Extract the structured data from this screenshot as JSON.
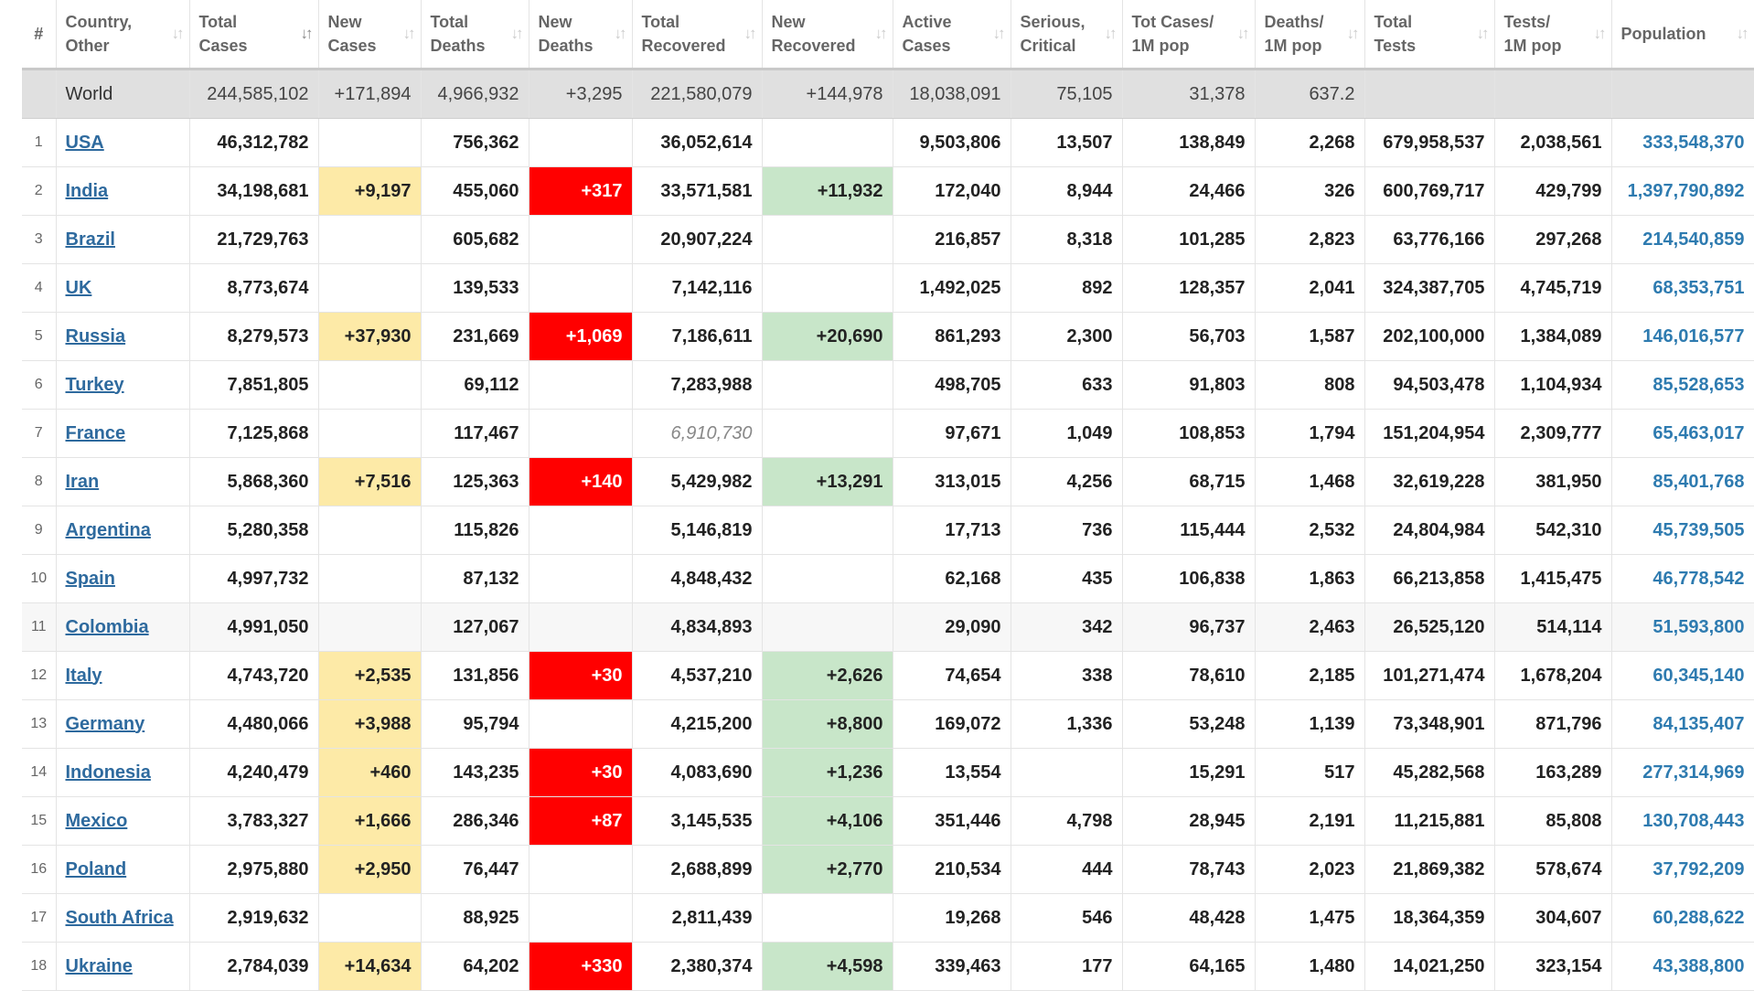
{
  "headers": [
    {
      "label": "#",
      "sort": false
    },
    {
      "label": "Country,\nOther",
      "sort": true
    },
    {
      "label": "Total\nCases",
      "sort": true,
      "active": true
    },
    {
      "label": "New\nCases",
      "sort": true
    },
    {
      "label": "Total\nDeaths",
      "sort": true
    },
    {
      "label": "New\nDeaths",
      "sort": true
    },
    {
      "label": "Total\nRecovered",
      "sort": true
    },
    {
      "label": "New\nRecovered",
      "sort": true
    },
    {
      "label": "Active\nCases",
      "sort": true
    },
    {
      "label": "Serious,\nCritical",
      "sort": true
    },
    {
      "label": "Tot Cases/\n1M pop",
      "sort": true
    },
    {
      "label": "Deaths/\n1M pop",
      "sort": true
    },
    {
      "label": "Total\nTests",
      "sort": true
    },
    {
      "label": "Tests/\n1M pop",
      "sort": true
    },
    {
      "label": "Population",
      "sort": true
    }
  ],
  "world": {
    "country": "World",
    "total_cases": "244,585,102",
    "new_cases": "+171,894",
    "total_deaths": "4,966,932",
    "new_deaths": "+3,295",
    "total_recovered": "221,580,079",
    "new_recovered": "+144,978",
    "active_cases": "18,038,091",
    "serious_critical": "75,105",
    "cases_per_1m": "31,378",
    "deaths_per_1m": "637.2",
    "total_tests": "",
    "tests_per_1m": "",
    "population": ""
  },
  "rows": [
    {
      "idx": "1",
      "country": "USA",
      "total_cases": "46,312,782",
      "new_cases": "",
      "total_deaths": "756,362",
      "new_deaths": "",
      "total_recovered": "36,052,614",
      "new_recovered": "",
      "active_cases": "9,503,806",
      "serious_critical": "13,507",
      "cases_per_1m": "138,849",
      "deaths_per_1m": "2,268",
      "total_tests": "679,958,537",
      "tests_per_1m": "2,038,561",
      "population": "333,548,370"
    },
    {
      "idx": "2",
      "country": "India",
      "total_cases": "34,198,681",
      "new_cases": "+9,197",
      "total_deaths": "455,060",
      "new_deaths": "+317",
      "total_recovered": "33,571,581",
      "new_recovered": "+11,932",
      "active_cases": "172,040",
      "serious_critical": "8,944",
      "cases_per_1m": "24,466",
      "deaths_per_1m": "326",
      "total_tests": "600,769,717",
      "tests_per_1m": "429,799",
      "population": "1,397,790,892"
    },
    {
      "idx": "3",
      "country": "Brazil",
      "total_cases": "21,729,763",
      "new_cases": "",
      "total_deaths": "605,682",
      "new_deaths": "",
      "total_recovered": "20,907,224",
      "new_recovered": "",
      "active_cases": "216,857",
      "serious_critical": "8,318",
      "cases_per_1m": "101,285",
      "deaths_per_1m": "2,823",
      "total_tests": "63,776,166",
      "tests_per_1m": "297,268",
      "population": "214,540,859"
    },
    {
      "idx": "4",
      "country": "UK",
      "total_cases": "8,773,674",
      "new_cases": "",
      "total_deaths": "139,533",
      "new_deaths": "",
      "total_recovered": "7,142,116",
      "new_recovered": "",
      "active_cases": "1,492,025",
      "serious_critical": "892",
      "cases_per_1m": "128,357",
      "deaths_per_1m": "2,041",
      "total_tests": "324,387,705",
      "tests_per_1m": "4,745,719",
      "population": "68,353,751"
    },
    {
      "idx": "5",
      "country": "Russia",
      "total_cases": "8,279,573",
      "new_cases": "+37,930",
      "total_deaths": "231,669",
      "new_deaths": "+1,069",
      "total_recovered": "7,186,611",
      "new_recovered": "+20,690",
      "active_cases": "861,293",
      "serious_critical": "2,300",
      "cases_per_1m": "56,703",
      "deaths_per_1m": "1,587",
      "total_tests": "202,100,000",
      "tests_per_1m": "1,384,089",
      "population": "146,016,577"
    },
    {
      "idx": "6",
      "country": "Turkey",
      "total_cases": "7,851,805",
      "new_cases": "",
      "total_deaths": "69,112",
      "new_deaths": "",
      "total_recovered": "7,283,988",
      "new_recovered": "",
      "active_cases": "498,705",
      "serious_critical": "633",
      "cases_per_1m": "91,803",
      "deaths_per_1m": "808",
      "total_tests": "94,503,478",
      "tests_per_1m": "1,104,934",
      "population": "85,528,653"
    },
    {
      "idx": "7",
      "country": "France",
      "total_cases": "7,125,868",
      "new_cases": "",
      "total_deaths": "117,467",
      "new_deaths": "",
      "total_recovered": "6,910,730",
      "recovered_italic": true,
      "new_recovered": "",
      "active_cases": "97,671",
      "serious_critical": "1,049",
      "cases_per_1m": "108,853",
      "deaths_per_1m": "1,794",
      "total_tests": "151,204,954",
      "tests_per_1m": "2,309,777",
      "population": "65,463,017"
    },
    {
      "idx": "8",
      "country": "Iran",
      "total_cases": "5,868,360",
      "new_cases": "+7,516",
      "total_deaths": "125,363",
      "new_deaths": "+140",
      "total_recovered": "5,429,982",
      "new_recovered": "+13,291",
      "active_cases": "313,015",
      "serious_critical": "4,256",
      "cases_per_1m": "68,715",
      "deaths_per_1m": "1,468",
      "total_tests": "32,619,228",
      "tests_per_1m": "381,950",
      "population": "85,401,768"
    },
    {
      "idx": "9",
      "country": "Argentina",
      "total_cases": "5,280,358",
      "new_cases": "",
      "total_deaths": "115,826",
      "new_deaths": "",
      "total_recovered": "5,146,819",
      "new_recovered": "",
      "active_cases": "17,713",
      "serious_critical": "736",
      "cases_per_1m": "115,444",
      "deaths_per_1m": "2,532",
      "total_tests": "24,804,984",
      "tests_per_1m": "542,310",
      "population": "45,739,505"
    },
    {
      "idx": "10",
      "country": "Spain",
      "total_cases": "4,997,732",
      "new_cases": "",
      "total_deaths": "87,132",
      "new_deaths": "",
      "total_recovered": "4,848,432",
      "new_recovered": "",
      "active_cases": "62,168",
      "serious_critical": "435",
      "cases_per_1m": "106,838",
      "deaths_per_1m": "1,863",
      "total_tests": "66,213,858",
      "tests_per_1m": "1,415,475",
      "population": "46,778,542"
    },
    {
      "idx": "11",
      "country": "Colombia",
      "total_cases": "4,991,050",
      "new_cases": "",
      "total_deaths": "127,067",
      "new_deaths": "",
      "total_recovered": "4,834,893",
      "new_recovered": "",
      "active_cases": "29,090",
      "serious_critical": "342",
      "cases_per_1m": "96,737",
      "deaths_per_1m": "2,463",
      "total_tests": "26,525,120",
      "tests_per_1m": "514,114",
      "population": "51,593,800",
      "alt": true
    },
    {
      "idx": "12",
      "country": "Italy",
      "total_cases": "4,743,720",
      "new_cases": "+2,535",
      "total_deaths": "131,856",
      "new_deaths": "+30",
      "total_recovered": "4,537,210",
      "new_recovered": "+2,626",
      "active_cases": "74,654",
      "serious_critical": "338",
      "cases_per_1m": "78,610",
      "deaths_per_1m": "2,185",
      "total_tests": "101,271,474",
      "tests_per_1m": "1,678,204",
      "population": "60,345,140"
    },
    {
      "idx": "13",
      "country": "Germany",
      "total_cases": "4,480,066",
      "new_cases": "+3,988",
      "total_deaths": "95,794",
      "new_deaths": "",
      "total_recovered": "4,215,200",
      "new_recovered": "+8,800",
      "active_cases": "169,072",
      "serious_critical": "1,336",
      "cases_per_1m": "53,248",
      "deaths_per_1m": "1,139",
      "total_tests": "73,348,901",
      "tests_per_1m": "871,796",
      "population": "84,135,407"
    },
    {
      "idx": "14",
      "country": "Indonesia",
      "total_cases": "4,240,479",
      "new_cases": "+460",
      "total_deaths": "143,235",
      "new_deaths": "+30",
      "total_recovered": "4,083,690",
      "new_recovered": "+1,236",
      "active_cases": "13,554",
      "serious_critical": "",
      "cases_per_1m": "15,291",
      "deaths_per_1m": "517",
      "total_tests": "45,282,568",
      "tests_per_1m": "163,289",
      "population": "277,314,969"
    },
    {
      "idx": "15",
      "country": "Mexico",
      "total_cases": "3,783,327",
      "new_cases": "+1,666",
      "total_deaths": "286,346",
      "new_deaths": "+87",
      "total_recovered": "3,145,535",
      "new_recovered": "+4,106",
      "active_cases": "351,446",
      "serious_critical": "4,798",
      "cases_per_1m": "28,945",
      "deaths_per_1m": "2,191",
      "total_tests": "11,215,881",
      "tests_per_1m": "85,808",
      "population": "130,708,443"
    },
    {
      "idx": "16",
      "country": "Poland",
      "total_cases": "2,975,880",
      "new_cases": "+2,950",
      "total_deaths": "76,447",
      "new_deaths": "",
      "total_recovered": "2,688,899",
      "new_recovered": "+2,770",
      "active_cases": "210,534",
      "serious_critical": "444",
      "cases_per_1m": "78,743",
      "deaths_per_1m": "2,023",
      "total_tests": "21,869,382",
      "tests_per_1m": "578,674",
      "population": "37,792,209"
    },
    {
      "idx": "17",
      "country": "South Africa",
      "total_cases": "2,919,632",
      "new_cases": "",
      "total_deaths": "88,925",
      "new_deaths": "",
      "total_recovered": "2,811,439",
      "new_recovered": "",
      "active_cases": "19,268",
      "serious_critical": "546",
      "cases_per_1m": "48,428",
      "deaths_per_1m": "1,475",
      "total_tests": "18,364,359",
      "tests_per_1m": "304,607",
      "population": "60,288,622"
    },
    {
      "idx": "18",
      "country": "Ukraine",
      "total_cases": "2,784,039",
      "new_cases": "+14,634",
      "total_deaths": "64,202",
      "new_deaths": "+330",
      "total_recovered": "2,380,374",
      "new_recovered": "+4,598",
      "active_cases": "339,463",
      "serious_critical": "177",
      "cases_per_1m": "64,165",
      "deaths_per_1m": "1,480",
      "total_tests": "14,021,250",
      "tests_per_1m": "323,154",
      "population": "43,388,800"
    }
  ],
  "colors": {
    "new_cases_bg": "#fdeaa7",
    "new_deaths_bg": "#ff0000",
    "new_recovered_bg": "#c8e6c9",
    "link": "#2e6a9e",
    "population": "#2e7bb0"
  }
}
